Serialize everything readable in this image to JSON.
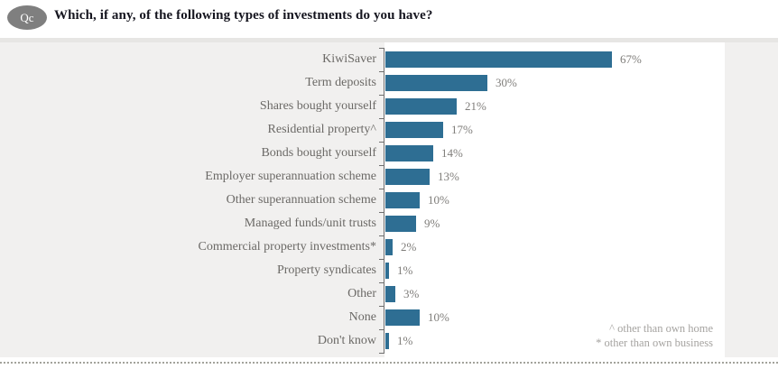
{
  "header": {
    "badge": "Qc",
    "title": "Which, if any, of the following types of investments do you have?"
  },
  "chart_data": {
    "type": "bar",
    "orientation": "horizontal",
    "title": "Which, if any, of the following types of investments do you have?",
    "categories": [
      "KiwiSaver",
      "Term deposits",
      "Shares bought yourself",
      "Residential property^",
      "Bonds bought yourself",
      "Employer superannuation scheme",
      "Other superannuation scheme",
      "Managed funds/unit trusts",
      "Commercial property investments*",
      "Property syndicates",
      "Other",
      "None",
      "Don't know"
    ],
    "values": [
      67,
      30,
      21,
      17,
      14,
      13,
      10,
      9,
      2,
      1,
      3,
      10,
      1
    ],
    "value_labels": [
      "67%",
      "30%",
      "21%",
      "17%",
      "14%",
      "13%",
      "10%",
      "9%",
      "2%",
      "1%",
      "3%",
      "10%",
      "1%"
    ],
    "value_suffix": "%",
    "xlim": [
      0,
      100
    ],
    "grid": false,
    "legend": false,
    "bar_color": "#2e6e93",
    "label_color": "#6b6966",
    "value_color": "#7f7d7a"
  },
  "footnotes": {
    "line1": "^ other than own home",
    "line2": "* other than own business"
  },
  "colors": {
    "accent_bar": "#2e6e93",
    "panel_background": "#f1f0ef",
    "badge_background": "#7f7f7f",
    "axis": "#6f6f6f",
    "footnote_text": "#a5a3a0"
  }
}
